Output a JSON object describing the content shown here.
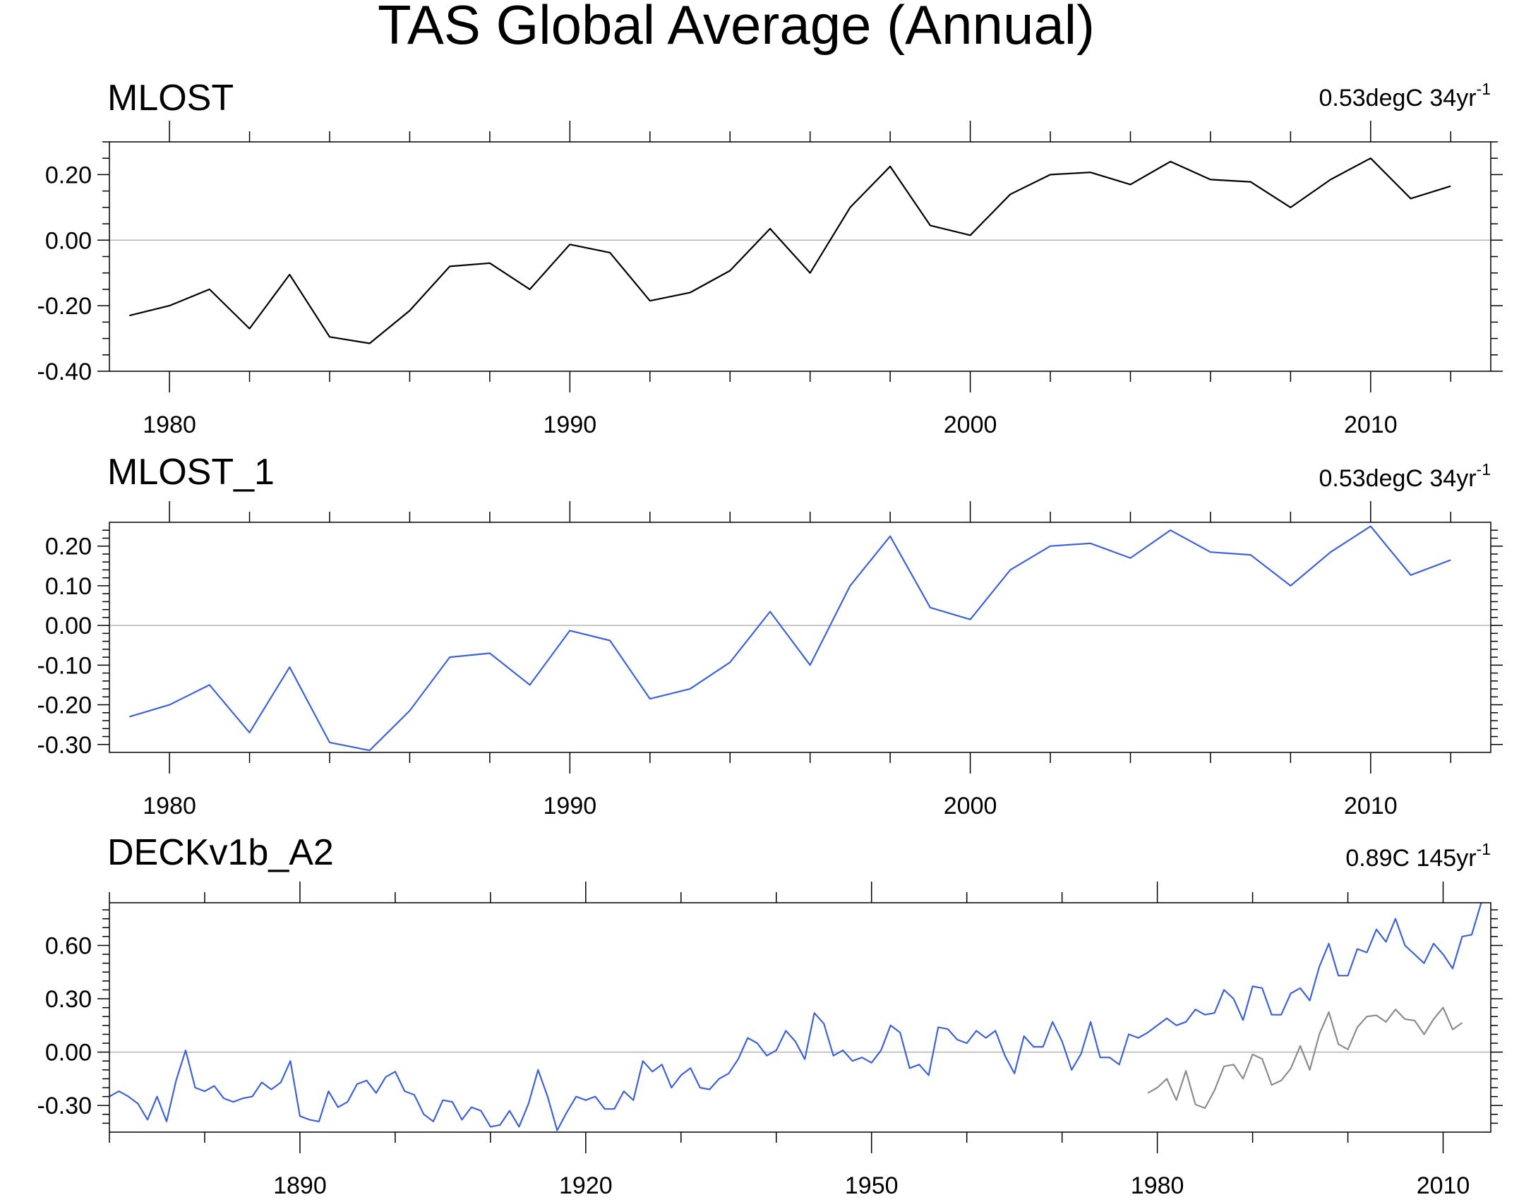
{
  "title": "TAS Global Average (Annual)",
  "colors": {
    "black": "#000000",
    "blue": "#3d63d6",
    "gray": "#8c8c8c",
    "zero": "#b4b4b4"
  },
  "chart_data": [
    {
      "type": "line",
      "title": "MLOST",
      "trend": {
        "prefix": "0.53degC 34yr",
        "sup": "-1"
      },
      "x": [
        1979,
        1980,
        1981,
        1982,
        1983,
        1984,
        1985,
        1986,
        1987,
        1988,
        1989,
        1990,
        1991,
        1992,
        1993,
        1994,
        1995,
        1996,
        1997,
        1998,
        1999,
        2000,
        2001,
        2002,
        2003,
        2004,
        2005,
        2006,
        2007,
        2008,
        2009,
        2010,
        2011,
        2012
      ],
      "series": [
        {
          "color": "#000000",
          "values": [
            -0.23,
            -0.2,
            -0.15,
            -0.27,
            -0.105,
            -0.295,
            -0.315,
            -0.215,
            -0.08,
            -0.07,
            -0.15,
            -0.013,
            -0.038,
            -0.185,
            -0.16,
            -0.093,
            0.035,
            -0.1,
            0.1,
            0.225,
            0.045,
            0.015,
            0.14,
            0.2,
            0.207,
            0.17,
            0.24,
            0.185,
            0.178,
            0.1,
            0.185,
            0.25,
            0.127,
            0.165
          ]
        }
      ],
      "xlim": [
        1978.5,
        2013
      ],
      "ylim": [
        -0.4,
        0.3
      ],
      "xticks_major": [
        1980,
        1990,
        2000,
        2010
      ],
      "xticks_minor": [
        1978,
        1982,
        1984,
        1986,
        1988,
        1992,
        1994,
        1996,
        1998,
        2002,
        2004,
        2006,
        2008,
        2012
      ],
      "yticks": [
        -0.4,
        -0.2,
        0.0,
        0.2
      ],
      "ytick_labels": [
        "-0.40",
        "-0.20",
        "0.00",
        "0.20"
      ],
      "yticks_minor": [
        -0.35,
        -0.3,
        -0.25,
        -0.15,
        -0.1,
        -0.05,
        0.05,
        0.1,
        0.15,
        0.25,
        0.3
      ],
      "zero_line": true
    },
    {
      "type": "line",
      "title": "MLOST_1",
      "trend": {
        "prefix": "0.53degC 34yr",
        "sup": "-1"
      },
      "x": [
        1979,
        1980,
        1981,
        1982,
        1983,
        1984,
        1985,
        1986,
        1987,
        1988,
        1989,
        1990,
        1991,
        1992,
        1993,
        1994,
        1995,
        1996,
        1997,
        1998,
        1999,
        2000,
        2001,
        2002,
        2003,
        2004,
        2005,
        2006,
        2007,
        2008,
        2009,
        2010,
        2011,
        2012
      ],
      "series": [
        {
          "color": "#3d63d6",
          "values": [
            -0.23,
            -0.2,
            -0.15,
            -0.27,
            -0.105,
            -0.295,
            -0.315,
            -0.215,
            -0.08,
            -0.07,
            -0.15,
            -0.013,
            -0.038,
            -0.185,
            -0.16,
            -0.093,
            0.035,
            -0.1,
            0.1,
            0.225,
            0.045,
            0.015,
            0.14,
            0.2,
            0.207,
            0.17,
            0.24,
            0.185,
            0.178,
            0.1,
            0.185,
            0.25,
            0.127,
            0.165
          ]
        }
      ],
      "xlim": [
        1978.5,
        2013
      ],
      "ylim": [
        -0.32,
        0.26
      ],
      "xticks_major": [
        1980,
        1990,
        2000,
        2010
      ],
      "xticks_minor": [
        1978,
        1982,
        1984,
        1986,
        1988,
        1992,
        1994,
        1996,
        1998,
        2002,
        2004,
        2006,
        2008,
        2012
      ],
      "yticks": [
        -0.3,
        -0.2,
        -0.1,
        0.0,
        0.1,
        0.2
      ],
      "ytick_labels": [
        "-0.30",
        "-0.20",
        "-0.10",
        "0.00",
        "0.10",
        "0.20"
      ],
      "yticks_minor": [
        -0.28,
        -0.26,
        -0.24,
        -0.22,
        -0.18,
        -0.16,
        -0.14,
        -0.12,
        -0.08,
        -0.06,
        -0.04,
        -0.02,
        0.02,
        0.04,
        0.06,
        0.08,
        0.12,
        0.14,
        0.16,
        0.18,
        0.22,
        0.24
      ],
      "zero_line": true
    },
    {
      "type": "line",
      "title": "DECKv1b_A2",
      "trend": {
        "prefix": "0.89C 145yr",
        "sup": "-1"
      },
      "series": [
        {
          "color": "#3d63d6",
          "x_start": 1870,
          "values": [
            -0.25,
            -0.22,
            -0.25,
            -0.29,
            -0.38,
            -0.25,
            -0.39,
            -0.16,
            0.01,
            -0.2,
            -0.22,
            -0.19,
            -0.26,
            -0.28,
            -0.26,
            -0.25,
            -0.17,
            -0.21,
            -0.17,
            -0.05,
            -0.36,
            -0.38,
            -0.39,
            -0.22,
            -0.31,
            -0.28,
            -0.18,
            -0.16,
            -0.23,
            -0.14,
            -0.11,
            -0.22,
            -0.24,
            -0.35,
            -0.39,
            -0.27,
            -0.28,
            -0.38,
            -0.31,
            -0.33,
            -0.42,
            -0.41,
            -0.33,
            -0.42,
            -0.29,
            -0.1,
            -0.25,
            -0.44,
            -0.34,
            -0.25,
            -0.27,
            -0.25,
            -0.32,
            -0.32,
            -0.22,
            -0.27,
            -0.05,
            -0.11,
            -0.07,
            -0.2,
            -0.13,
            -0.09,
            -0.2,
            -0.21,
            -0.15,
            -0.12,
            -0.04,
            0.08,
            0.05,
            -0.02,
            0.01,
            0.12,
            0.06,
            -0.04,
            0.22,
            0.16,
            -0.02,
            0.01,
            -0.05,
            -0.03,
            -0.06,
            0.01,
            0.15,
            0.11,
            -0.09,
            -0.07,
            -0.13,
            0.14,
            0.13,
            0.07,
            0.05,
            0.12,
            0.08,
            0.12,
            -0.02,
            -0.12,
            0.09,
            0.03,
            0.03,
            0.17,
            0.06,
            -0.1,
            -0.01,
            0.17,
            -0.03,
            -0.03,
            -0.07,
            0.1,
            0.08,
            0.11,
            0.15,
            0.19,
            0.15,
            0.17,
            0.24,
            0.21,
            0.22,
            0.35,
            0.3,
            0.18,
            0.37,
            0.36,
            0.21,
            0.21,
            0.33,
            0.36,
            0.29,
            0.48,
            0.61,
            0.43,
            0.43,
            0.58,
            0.56,
            0.69,
            0.62,
            0.75,
            0.6,
            0.55,
            0.5,
            0.61,
            0.55,
            0.47,
            0.65,
            0.66,
            0.84
          ]
        },
        {
          "color": "#8c8c8c",
          "x_start": 1979,
          "values": [
            -0.23,
            -0.2,
            -0.15,
            -0.27,
            -0.105,
            -0.295,
            -0.315,
            -0.215,
            -0.08,
            -0.07,
            -0.15,
            -0.013,
            -0.038,
            -0.185,
            -0.16,
            -0.093,
            0.035,
            -0.1,
            0.1,
            0.225,
            0.045,
            0.015,
            0.14,
            0.2,
            0.207,
            0.17,
            0.24,
            0.185,
            0.178,
            0.1,
            0.185,
            0.25,
            0.127,
            0.165
          ]
        }
      ],
      "xlim": [
        1870,
        2015
      ],
      "ylim": [
        -0.45,
        0.84
      ],
      "xticks_major": [
        1890,
        1920,
        1950,
        1980,
        2010
      ],
      "xticks_minor": [
        1870,
        1880,
        1900,
        1910,
        1930,
        1940,
        1960,
        1970,
        1990,
        2000
      ],
      "yticks": [
        -0.3,
        0.0,
        0.3,
        0.6
      ],
      "ytick_labels": [
        "-0.30",
        "0.00",
        "0.30",
        "0.60"
      ],
      "yticks_minor": [
        -0.4,
        -0.35,
        -0.25,
        -0.2,
        -0.15,
        -0.1,
        -0.05,
        0.05,
        0.1,
        0.15,
        0.2,
        0.25,
        0.35,
        0.4,
        0.45,
        0.5,
        0.55,
        0.65,
        0.7,
        0.75,
        0.8
      ],
      "zero_line": true
    }
  ]
}
